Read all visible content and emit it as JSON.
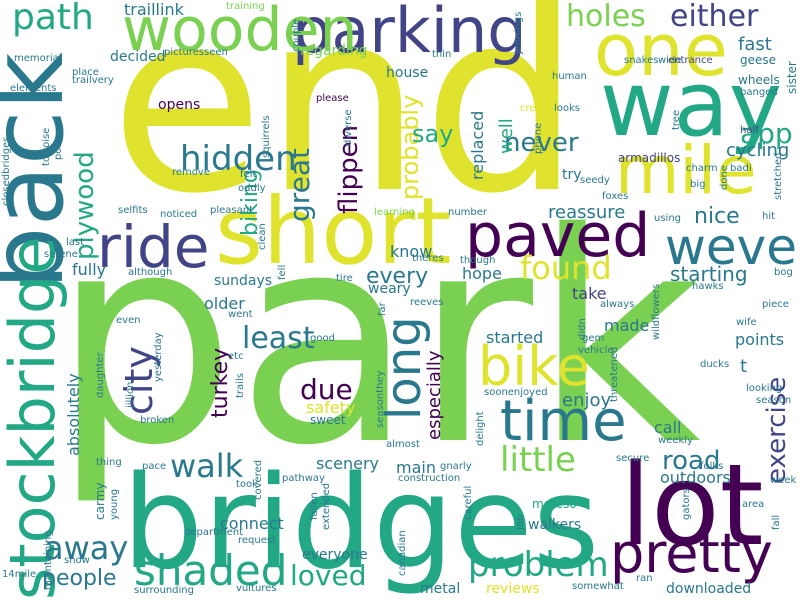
{
  "palette": {
    "yellow": "#dfe32d",
    "lightgreen": "#7ad151",
    "green": "#22a884",
    "teal": "#2a788e",
    "blue": "#414487",
    "purple": "#440154",
    "limegreen": "#5ec962",
    "aqua": "#35b779",
    "navy": "#3b528b",
    "cyan": "#21918c"
  },
  "words": {
    "park": "park",
    "end": "end",
    "bridges": "bridges",
    "back": "back",
    "stockbridge": "stockbridge",
    "lot": "lot",
    "short": "short",
    "way": "way",
    "one": "one",
    "mile": "mile",
    "parking": "parking",
    "wooden": "wooden",
    "paved": "paved",
    "ride": "ride",
    "weve": "weve",
    "time": "time",
    "pretty": "pretty",
    "bike": "bike",
    "long": "long",
    "shaded": "shaded",
    "problem": "problem",
    "path": "path",
    "holes": "holes",
    "either": "either",
    "hidden": "hidden",
    "found": "found",
    "city": "city",
    "little": "little",
    "walk": "walk",
    "away": "away",
    "loved": "loved",
    "exercise": "exercise",
    "great": "great",
    "plywood": "plywood",
    "least": "least",
    "never": "never",
    "probably": "probably",
    "flippen": "flippen",
    "app": "app",
    "road": "road",
    "turkey": "turkey",
    "due": "due",
    "people": "people",
    "every": "every",
    "biking": "biking",
    "say": "say",
    "nice": "nice",
    "starting": "starting",
    "cycling": "cycling",
    "traillink": "traillink",
    "fast": "fast",
    "well": "well",
    "replaced": "replaced",
    "enjoy": "enjoy",
    "especially": "especially",
    "reassure": "reassure",
    "connect": "connect",
    "scenery": "scenery",
    "safety": "safety",
    "absolutely": "absolutely",
    "fully": "fully",
    "sundays": "sundays",
    "older": "older",
    "know": "know",
    "hope": "hope",
    "take": "take",
    "made": "made",
    "points": "points",
    "call": "call",
    "started": "started",
    "main": "main",
    "walkers": "walkers",
    "outdoors": "outdoors",
    "everyone": "everyone",
    "metal": "metal",
    "reviews": "reviews",
    "downloaded": "downloaded",
    "moreso": "moreso",
    "opens": "opens",
    "decided": "decided",
    "regarding": "regarding",
    "house": "house",
    "try": "try",
    "armadillos": "armadillos",
    "t": "t",
    "weary": "weary",
    "sweet": "sweet",
    "wheels": "wheels",
    "training": "training",
    "jennings": "jennings",
    "snakes": "snakes",
    "wide": "wide",
    "entrance": "entrance",
    "geese": "geese",
    "sister": "sister",
    "memorial": "memorial",
    "place": "place",
    "trailvery": "trailvery",
    "pictures": "pictures",
    "seen": "seen",
    "couple": "couple",
    "thin": "thin",
    "human": "human",
    "elements": "elements",
    "please": "please",
    "squirrels": "squirrels",
    "diverse": "diverse",
    "creek": "creek",
    "phone": "phone",
    "looks": "looks",
    "banged": "banged",
    "half": "half",
    "tree": "tree",
    "tortoise": "tortoise",
    "possums": "possums",
    "remove": "remove",
    "oddly": "oddly",
    "felt": "felt",
    "seedy": "seedy",
    "charm": "charm",
    "badi": "badi",
    "stretched": "stretched",
    "done": "done",
    "big": "big",
    "foxes": "foxes",
    "closedbridges": "closedbridges",
    "selfits": "selfits",
    "noticed": "noticed",
    "pleasant": "pleasant",
    "learning": "learning",
    "number": "number",
    "using": "using",
    "hit": "hit",
    "last": "last",
    "serene": "serene",
    "clean": "clean",
    "theres": "theres",
    "though": "though",
    "although": "although",
    "tire": "tire",
    "fell": "fell",
    "wildflowers": "wildflowers",
    "hawks": "hawks",
    "bog": "bog",
    "always": "always",
    "went": "went",
    "reeves": "reeves",
    "far": "far",
    "didn": "didn",
    "piece": "piece",
    "wife": "wife",
    "even": "even",
    "daughter": "daughter",
    "yesterday": "yesterday",
    "etc": "etc",
    "good": "good",
    "gem": "gem",
    "vehicle": "vehicle",
    "ducks": "ducks",
    "threatened": "threatened",
    "jillion": "jillion",
    "trails": "trails",
    "seasonthey": "seasonthey",
    "soonenjoyed": "soonenjoyed",
    "looking": "looking",
    "season": "season",
    "broken": "broken",
    "almost": "almost",
    "delight": "delight",
    "weekly": "weekly",
    "thing": "thing",
    "pace": "pace",
    "covered": "covered",
    "gnarly": "gnarly",
    "secure": "secure",
    "folks": "folks",
    "week": "week",
    "maintaining": "maintaining",
    "young": "young",
    "carmy": "carmy",
    "took": "took",
    "pathway": "pathway",
    "fallen": "fallen",
    "extended": "extended",
    "construction": "construction",
    "careful": "careful",
    "job": "job",
    "gators": "gators",
    "area": "area",
    "fall": "fall",
    "department": "department",
    "request": "request",
    "canadian": "canadian",
    "14mile": "14mile",
    "snow": "snow",
    "surrounding": "surrounding",
    "vultures": "vultures",
    "somewhat": "somewhat",
    "ran": "ran"
  }
}
